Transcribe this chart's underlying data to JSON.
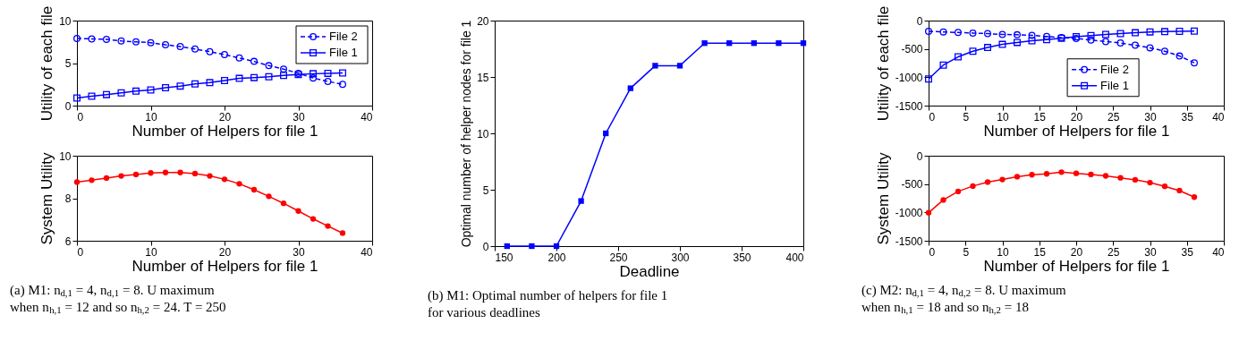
{
  "chart_data": [
    {
      "type": "line",
      "x": [
        0,
        2,
        4,
        6,
        8,
        10,
        12,
        14,
        16,
        18,
        20,
        22,
        24,
        26,
        28,
        30,
        32,
        34,
        36
      ],
      "xlabel": "Number of Helpers for file 1",
      "ylabel": "Utility of each file",
      "xlim": [
        0,
        40
      ],
      "xticks": [
        0,
        10,
        20,
        30,
        40
      ],
      "ylim": [
        0,
        10
      ],
      "yticks": [
        0,
        5,
        10
      ],
      "grid": false,
      "legend": "top right",
      "series": [
        {
          "name": "File 2",
          "color": "#0000ff",
          "marker": "circle",
          "line_style": "dashed",
          "values": [
            7.9,
            7.85,
            7.8,
            7.6,
            7.5,
            7.4,
            7.15,
            6.95,
            6.65,
            6.35,
            6.0,
            5.6,
            5.2,
            4.7,
            4.3,
            3.8,
            3.25,
            2.85,
            2.5
          ]
        },
        {
          "name": "File 1",
          "color": "#0000ff",
          "marker": "square",
          "line_style": "solid",
          "values": [
            0.9,
            1.1,
            1.3,
            1.5,
            1.7,
            1.85,
            2.1,
            2.3,
            2.55,
            2.7,
            2.95,
            3.2,
            3.3,
            3.4,
            3.55,
            3.65,
            3.75,
            3.8,
            3.85
          ]
        }
      ]
    },
    {
      "type": "line",
      "x": [
        0,
        2,
        4,
        6,
        8,
        10,
        12,
        14,
        16,
        18,
        20,
        22,
        24,
        26,
        28,
        30,
        32,
        34,
        36
      ],
      "xlabel": "Number of Helpers for file 1",
      "ylabel": "System Utility",
      "xlim": [
        0,
        40
      ],
      "xticks": [
        0,
        10,
        20,
        30,
        40
      ],
      "ylim": [
        6,
        10
      ],
      "yticks": [
        6,
        8,
        10
      ],
      "grid": false,
      "annotations": [
        "(a) M1: n$_{d,1}$ = 4, n$_{d,1}$ = 8. U maximum",
        "when n$_{h,1}$ = 12 and so n$_{h,2}$ = 24. T = 250"
      ],
      "series": [
        {
          "color": "#ff0000",
          "marker": "circle",
          "line_style": "solid",
          "values": [
            8.76,
            8.85,
            8.95,
            9.05,
            9.12,
            9.19,
            9.21,
            9.21,
            9.16,
            9.05,
            8.89,
            8.68,
            8.4,
            8.09,
            7.76,
            7.4,
            7.03,
            6.69,
            6.36
          ]
        }
      ]
    },
    {
      "type": "line",
      "x": [
        160,
        180,
        200,
        220,
        240,
        260,
        280,
        300,
        320,
        340,
        360,
        380,
        400
      ],
      "xlabel": "Deadline",
      "ylabel": "Optimal number of helper nodes for file 1",
      "xlim": [
        150,
        400
      ],
      "xticks": [
        150,
        200,
        250,
        300,
        350,
        400
      ],
      "ylim": [
        0,
        20
      ],
      "yticks": [
        0,
        5,
        10,
        15,
        20
      ],
      "grid": false,
      "annotations": [
        "(b) M1: Optimal number of helpers for file 1",
        "for various deadlines"
      ],
      "series": [
        {
          "color": "#0000ff",
          "marker": "square",
          "line_style": "solid",
          "values": [
            0,
            0,
            0,
            4,
            10,
            14,
            16,
            16,
            18,
            18,
            18,
            18,
            18
          ]
        }
      ]
    },
    {
      "type": "line",
      "x": [
        0,
        2,
        4,
        6,
        8,
        10,
        12,
        14,
        16,
        18,
        20,
        22,
        24,
        26,
        28,
        30,
        32,
        34,
        36
      ],
      "xlabel": "Number of Helpers for file 1",
      "ylabel": "Utility of each file",
      "xlim": [
        0,
        40
      ],
      "xticks": [
        0,
        5,
        10,
        15,
        20,
        25,
        30,
        35,
        40
      ],
      "ylim": [
        -1500,
        0
      ],
      "yticks": [
        -1500,
        -1000,
        -500,
        0
      ],
      "grid": false,
      "legend": "center",
      "series": [
        {
          "name": "File 2",
          "color": "#0000ff",
          "marker": "circle",
          "line_style": "dashed",
          "values": [
            -190,
            -200,
            -210,
            -220,
            -230,
            -245,
            -250,
            -260,
            -280,
            -300,
            -315,
            -345,
            -370,
            -395,
            -435,
            -480,
            -540,
            -625,
            -745
          ]
        },
        {
          "name": "File 1",
          "color": "#0000ff",
          "marker": "square",
          "line_style": "solid",
          "values": [
            -1030,
            -785,
            -640,
            -540,
            -475,
            -420,
            -385,
            -355,
            -335,
            -310,
            -285,
            -265,
            -245,
            -230,
            -215,
            -200,
            -195,
            -190,
            -185
          ]
        }
      ]
    },
    {
      "type": "line",
      "x": [
        0,
        2,
        4,
        6,
        8,
        10,
        12,
        14,
        16,
        18,
        20,
        22,
        24,
        26,
        28,
        30,
        32,
        34,
        36
      ],
      "xlabel": "Number of Helpers for file 1",
      "ylabel": "System Utility",
      "xlim": [
        0,
        40
      ],
      "xticks": [
        0,
        5,
        10,
        15,
        20,
        25,
        30,
        35,
        40
      ],
      "ylim": [
        -1500,
        0
      ],
      "yticks": [
        -1500,
        -1000,
        -500,
        0
      ],
      "grid": false,
      "annotations": [
        "(c) M2: n$_{d,1}$ = 4, n$_{d,2}$ = 8. U maximum",
        "when n$_{h,1}$ = 18 and so n$_{h,2}$ = 18"
      ],
      "series": [
        {
          "color": "#ff0000",
          "marker": "circle",
          "line_style": "solid",
          "values": [
            -1005,
            -780,
            -630,
            -535,
            -465,
            -420,
            -370,
            -335,
            -320,
            -290,
            -310,
            -330,
            -355,
            -390,
            -425,
            -475,
            -540,
            -615,
            -730
          ]
        }
      ]
    }
  ]
}
